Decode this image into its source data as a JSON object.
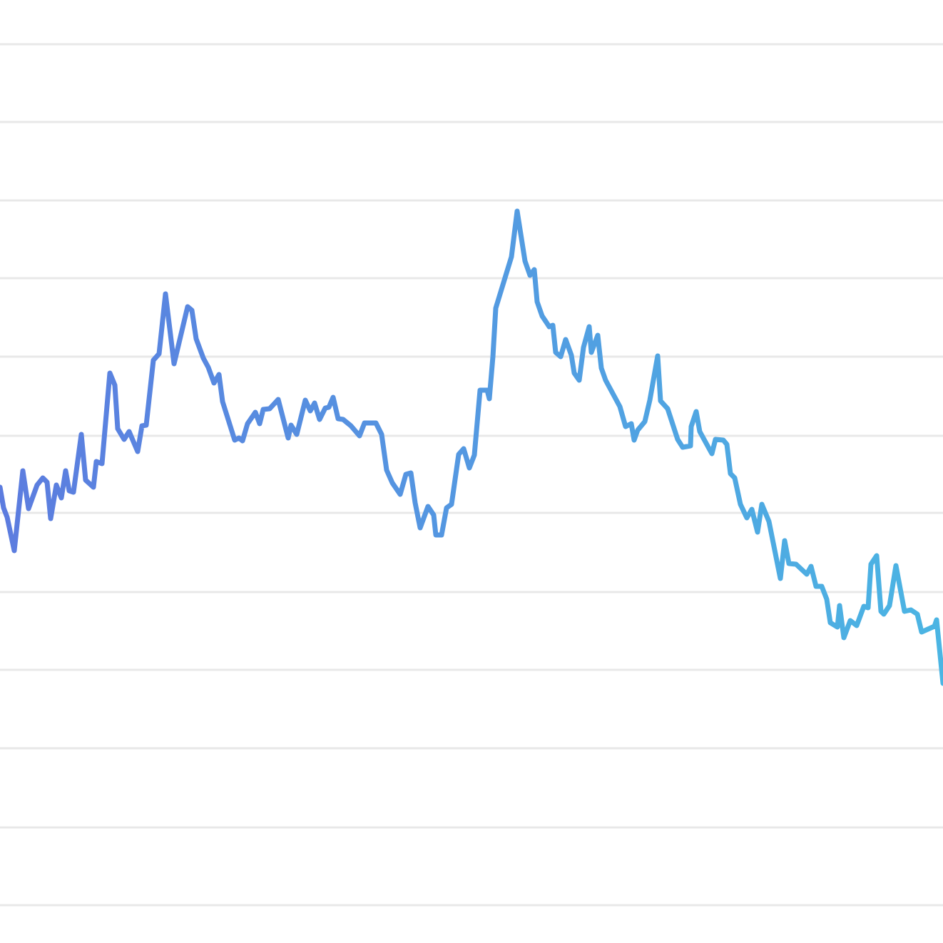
{
  "chart_data": {
    "type": "line",
    "xlim": [
      0,
      1322
    ],
    "ylim": [
      0,
      1207
    ],
    "yticks": [
      0,
      109,
      220,
      330,
      439,
      550,
      658,
      769,
      879,
      988,
      1098,
      1207
    ],
    "grid": true,
    "grid_color": "#e8e8e8",
    "x": [
      0,
      5,
      10,
      20,
      32,
      40,
      52,
      60,
      66,
      71,
      79,
      86,
      92,
      97,
      103,
      114,
      120,
      131,
      135,
      143,
      154,
      161,
      165,
      174,
      181,
      193,
      199,
      205,
      215,
      223,
      232,
      244,
      263,
      269,
      275,
      285,
      292,
      300,
      307,
      312,
      329,
      335,
      340,
      347,
      358,
      364,
      369,
      378,
      390,
      404,
      408,
      416,
      428,
      435,
      441,
      448,
      456,
      461,
      467,
      474,
      481,
      492,
      504,
      511,
      527,
      535,
      542,
      550,
      561,
      569,
      576,
      582,
      589,
      600,
      608,
      611,
      619,
      626,
      633,
      643,
      650,
      658,
      665,
      673,
      683,
      686,
      691,
      695,
      717,
      725,
      736,
      743,
      749,
      753,
      760,
      770,
      775,
      779,
      786,
      793,
      801,
      805,
      812,
      818,
      826,
      829,
      838,
      843,
      849,
      869,
      877,
      885,
      889,
      894,
      904,
      911,
      922,
      926,
      936,
      950,
      957,
      968,
      969,
      976,
      981,
      998,
      1003,
      1014,
      1019,
      1024,
      1030,
      1038,
      1047,
      1054,
      1062,
      1068,
      1078,
      1094,
      1100,
      1106,
      1116,
      1131,
      1137,
      1144,
      1152,
      1159,
      1164,
      1174,
      1177,
      1183,
      1192,
      1201,
      1211,
      1217,
      1221,
      1229,
      1235,
      1239,
      1247,
      1256,
      1268,
      1277,
      1286,
      1292,
      1310,
      1313,
      1322
    ],
    "series": [
      {
        "color": [
          "#5c7cdf",
          "#4bb5e3"
        ],
        "values": [
          586,
          557,
          544,
          497,
          609,
          556,
          589,
          599,
          593,
          542,
          589,
          571,
          609,
          581,
          579,
          660,
          596,
          586,
          622,
          619,
          746,
          729,
          668,
          653,
          664,
          636,
          672,
          673,
          764,
          773,
          857,
          759,
          839,
          834,
          794,
          767,
          754,
          732,
          744,
          706,
          652,
          655,
          651,
          675,
          691,
          675,
          695,
          696,
          709,
          655,
          673,
          660,
          708,
          693,
          704,
          681,
          697,
          698,
          712,
          682,
          681,
          672,
          658,
          676,
          676,
          660,
          610,
          592,
          576,
          604,
          606,
          564,
          529,
          559,
          547,
          519,
          519,
          557,
          562,
          632,
          640,
          613,
          631,
          722,
          722,
          710,
          769,
          837,
          909,
          973,
          903,
          883,
          891,
          846,
          826,
          811,
          813,
          775,
          769,
          793,
          771,
          746,
          736,
          782,
          811,
          775,
          799,
          753,
          736,
          699,
          671,
          675,
          652,
          666,
          678,
          708,
          770,
          707,
          696,
          653,
          642,
          644,
          671,
          692,
          664,
          633,
          653,
          652,
          646,
          605,
          599,
          562,
          543,
          555,
          523,
          562,
          538,
          458,
          511,
          479,
          478,
          464,
          475,
          447,
          447,
          429,
          396,
          390,
          420,
          375,
          399,
          392,
          419,
          417,
          478,
          490,
          412,
          408,
          420,
          476,
          412,
          414,
          408,
          383,
          391,
          400,
          311
        ]
      }
    ]
  }
}
